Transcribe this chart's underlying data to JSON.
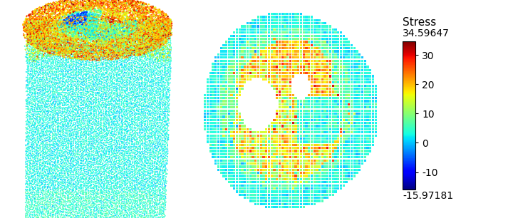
{
  "stress_label": "Stress",
  "stress_max": 34.59647,
  "stress_min": -15.97181,
  "colorbar_ticks": [
    30,
    20,
    10,
    0,
    -10
  ],
  "colorbar_tick_labels": [
    "30",
    "20",
    "10",
    "0",
    "-10"
  ],
  "background_color": "#ffffff",
  "colormap": "jet",
  "fig_width": 7.2,
  "fig_height": 3.06,
  "dpi": 100,
  "font_size_label": 11,
  "font_size_ticks": 10,
  "font_size_maxmin": 10
}
